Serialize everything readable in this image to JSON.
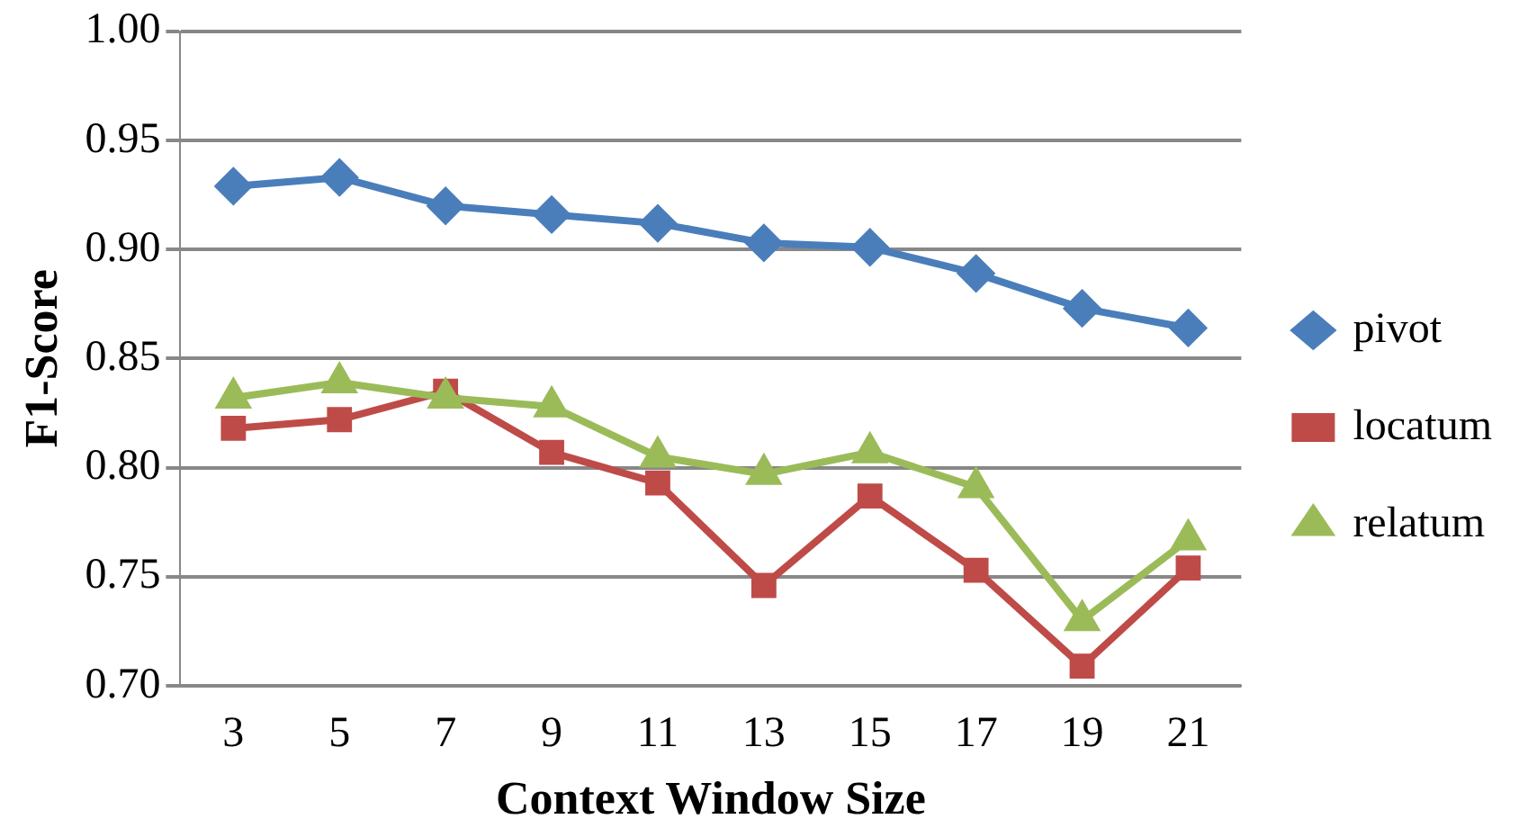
{
  "chart_data": {
    "type": "line",
    "xlabel": "Context Window Size",
    "ylabel": "F1-Score",
    "categories": [
      "3",
      "5",
      "7",
      "9",
      "11",
      "13",
      "15",
      "17",
      "19",
      "21"
    ],
    "series": [
      {
        "name": "pivot",
        "color": "#4a7ebb",
        "marker": "diamond",
        "values": [
          0.929,
          0.933,
          0.92,
          0.916,
          0.912,
          0.903,
          0.901,
          0.889,
          0.873,
          0.864
        ]
      },
      {
        "name": "locatum",
        "color": "#be4b48",
        "marker": "square",
        "values": [
          0.818,
          0.822,
          0.835,
          0.807,
          0.793,
          0.746,
          0.787,
          0.753,
          0.709,
          0.754
        ]
      },
      {
        "name": "relatum",
        "color": "#9bbb59",
        "marker": "triangle",
        "values": [
          0.832,
          0.839,
          0.832,
          0.828,
          0.805,
          0.797,
          0.807,
          0.791,
          0.73,
          0.767
        ]
      }
    ],
    "ylim": [
      0.7,
      1.0
    ],
    "yticks": [
      {
        "value": 0.7,
        "label": "0.70"
      },
      {
        "value": 0.75,
        "label": "0.75"
      },
      {
        "value": 0.8,
        "label": "0.80"
      },
      {
        "value": 0.85,
        "label": "0.85"
      },
      {
        "value": 0.9,
        "label": "0.90"
      },
      {
        "value": 0.95,
        "label": "0.95"
      },
      {
        "value": 1.0,
        "label": "1.00"
      }
    ],
    "grid": "y",
    "legend": "right"
  }
}
